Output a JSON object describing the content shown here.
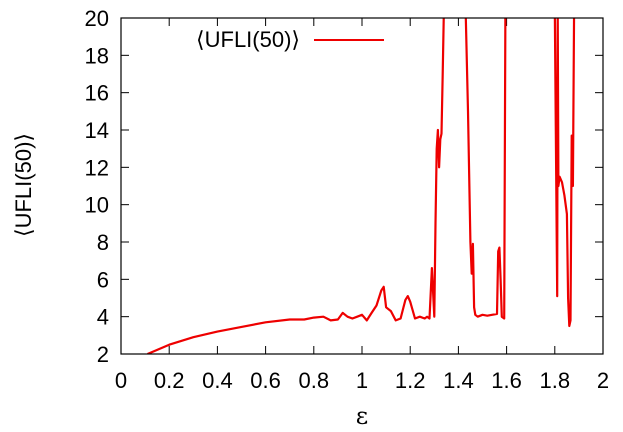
{
  "chart_data": {
    "type": "line",
    "title": "",
    "xlabel": "ε",
    "ylabel": "⟨UFLI(50)⟩",
    "xlim": [
      0,
      2
    ],
    "ylim": [
      2,
      20
    ],
    "x_ticks": [
      "0",
      "0.2",
      "0.4",
      "0.6",
      "0.8",
      "1",
      "1.2",
      "1.4",
      "1.6",
      "1.8",
      "2"
    ],
    "y_ticks": [
      "2",
      "4",
      "6",
      "8",
      "10",
      "12",
      "14",
      "16",
      "18",
      "20"
    ],
    "legend_position": "top-center",
    "grid": false,
    "series": [
      {
        "name": "⟨UFLI(50)⟩",
        "color": "#ee0000",
        "x": [
          0.11,
          0.2,
          0.3,
          0.4,
          0.5,
          0.6,
          0.7,
          0.76,
          0.8,
          0.84,
          0.87,
          0.9,
          0.92,
          0.94,
          0.96,
          0.98,
          1.0,
          1.02,
          1.04,
          1.06,
          1.08,
          1.09,
          1.1,
          1.12,
          1.14,
          1.16,
          1.18,
          1.19,
          1.2,
          1.22,
          1.24,
          1.26,
          1.27,
          1.28,
          1.29,
          1.3,
          1.305,
          1.31,
          1.315,
          1.32,
          1.325,
          1.33,
          1.335,
          1.34,
          1.35,
          1.36,
          1.38,
          1.4,
          1.42,
          1.43,
          1.44,
          1.45,
          1.455,
          1.46,
          1.465,
          1.47,
          1.48,
          1.5,
          1.52,
          1.54,
          1.56,
          1.565,
          1.57,
          1.575,
          1.58,
          1.59,
          1.595,
          1.6,
          1.61,
          1.7,
          1.8,
          1.81,
          1.812,
          1.815,
          1.82,
          1.83,
          1.84,
          1.85,
          1.855,
          1.86,
          1.865,
          1.87,
          1.875,
          1.88,
          1.89
        ],
        "y": [
          2.0,
          2.5,
          2.9,
          3.2,
          3.45,
          3.7,
          3.85,
          3.85,
          3.95,
          4.0,
          3.8,
          3.85,
          4.2,
          4.0,
          3.9,
          4.0,
          4.1,
          3.8,
          4.2,
          4.6,
          5.4,
          5.6,
          4.5,
          4.3,
          3.8,
          3.9,
          4.9,
          5.1,
          4.8,
          3.9,
          4.0,
          3.9,
          4.0,
          3.9,
          6.6,
          4.0,
          9.0,
          13.0,
          14.0,
          12.0,
          13.5,
          13.8,
          17.0,
          20.5,
          20.5,
          20.5,
          20.5,
          20.5,
          20.5,
          20.5,
          15.0,
          8.0,
          6.3,
          7.9,
          4.5,
          4.1,
          4.0,
          4.1,
          4.05,
          4.1,
          4.15,
          7.5,
          7.7,
          6.0,
          4.0,
          3.9,
          20.5,
          20.5,
          20.5,
          20.5,
          20.5,
          5.1,
          20.5,
          11.0,
          11.5,
          11.2,
          10.5,
          9.5,
          5.0,
          3.5,
          3.8,
          13.7,
          11.0,
          20.5,
          20.5
        ]
      }
    ]
  }
}
